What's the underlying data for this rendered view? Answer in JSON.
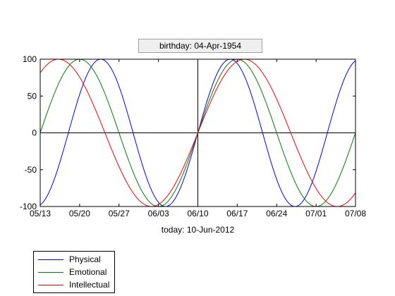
{
  "chart_data": {
    "type": "line",
    "title": "birthday: 04-Apr-1954",
    "xlabel": "today: 10-Jun-2012",
    "ylabel": "",
    "birthday": "1954-04-04",
    "today": "2012-06-10",
    "xlim": [
      "2012-05-13",
      "2012-07-08"
    ],
    "ylim": [
      -100,
      100
    ],
    "yticks": [
      -100,
      -50,
      0,
      50,
      100
    ],
    "xticks": [
      "2012-05-13",
      "2012-05-20",
      "2012-05-27",
      "2012-06-03",
      "2012-06-10",
      "2012-06-17",
      "2012-06-24",
      "2012-07-01",
      "2012-07-08"
    ],
    "xtick_labels": [
      "05/13",
      "05/20",
      "05/27",
      "06/03",
      "06/10",
      "06/17",
      "06/24",
      "07/01",
      "07/08"
    ],
    "grid": false,
    "legend_position": "bottom-left outside",
    "series": [
      {
        "name": "Physical",
        "period_days": 23,
        "amplitude": 100,
        "color": "#0000ff"
      },
      {
        "name": "Emotional",
        "period_days": 28,
        "amplitude": 100,
        "color": "#008000"
      },
      {
        "name": "Intellectual",
        "period_days": 33,
        "amplitude": 100,
        "color": "#ff0000"
      }
    ]
  }
}
